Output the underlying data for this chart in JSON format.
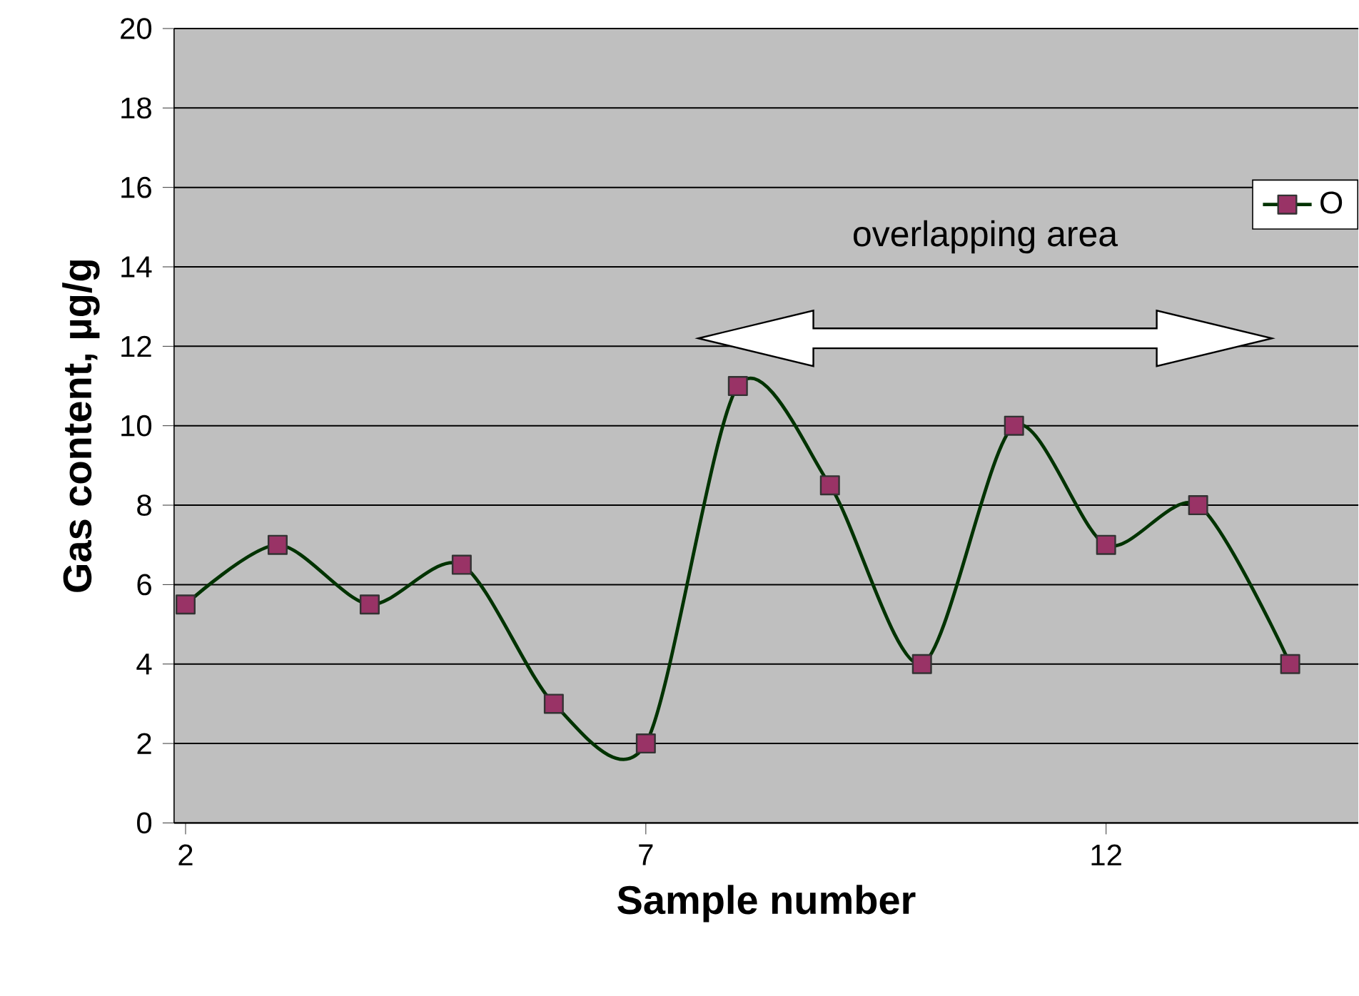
{
  "chart_data": {
    "type": "line",
    "xlabel": "Sample number",
    "ylabel": "Gas content,  µg/g",
    "x": [
      2,
      3,
      4,
      5,
      6,
      7,
      8,
      9,
      10,
      11,
      12,
      13,
      14
    ],
    "series": [
      {
        "name": "O",
        "color": "#003300",
        "values": [
          5.5,
          7,
          5.5,
          6.5,
          3,
          2,
          11,
          8.5,
          4,
          10,
          7,
          8,
          4
        ]
      }
    ],
    "xlim": [
      1.875,
      14.74
    ],
    "xticks": [
      2,
      7,
      12
    ],
    "ylim": [
      0,
      20
    ],
    "yticks": [
      0,
      2,
      4,
      6,
      8,
      10,
      12,
      14,
      16,
      18,
      20
    ],
    "annotations": [
      "overlapping area"
    ],
    "grid": "y",
    "legend": "top right",
    "marker": "square",
    "line_style": "solid"
  }
}
